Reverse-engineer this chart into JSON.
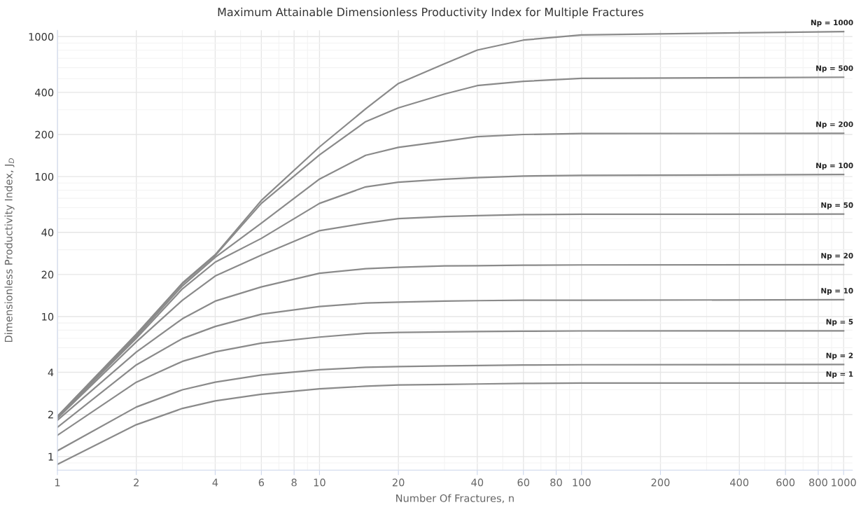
{
  "chart_data": {
    "type": "line",
    "title": "Maximum Attainable Dimensionless Productivity Index for Multiple Fractures",
    "xlabel": "Number Of Fractures, n",
    "ylabel": "Dimensionless Productivity Index, J$_{D}$",
    "log": "xy",
    "grid": true,
    "legend": false,
    "marker": "none",
    "line_style": "solid",
    "xlim": [
      1,
      1080
    ],
    "ylim": [
      0.8,
      1110
    ],
    "xticks": [
      1,
      2,
      4,
      6,
      8,
      10,
      20,
      40,
      60,
      80,
      100,
      200,
      400,
      600,
      800,
      1000
    ],
    "yticks": [
      1,
      2,
      4,
      10,
      20,
      40,
      100,
      200,
      400,
      1000
    ],
    "x": [
      1,
      2,
      3,
      4,
      6,
      10,
      15,
      20,
      30,
      40,
      60,
      100,
      1000
    ],
    "series": [
      {
        "name": "Np = 1000",
        "color": "#8a8a8a",
        "values": [
          1.94,
          7.5,
          17.4,
          27.7,
          67.6,
          163,
          305,
          463,
          641,
          802,
          945,
          1029,
          1087
        ]
      },
      {
        "name": "Np = 500",
        "color": "#8a8a8a",
        "values": [
          1.93,
          7.4,
          17.2,
          27.3,
          64.4,
          143,
          247,
          310,
          389,
          447,
          479,
          504,
          513
        ]
      },
      {
        "name": "Np = 200",
        "color": "#8a8a8a",
        "values": [
          1.92,
          7.2,
          16.6,
          26.5,
          46.5,
          96,
          142,
          162,
          179,
          193,
          200,
          203,
          204
        ]
      },
      {
        "name": "Np = 100",
        "color": "#8a8a8a",
        "values": [
          1.9,
          7.0,
          15.8,
          24.5,
          36.2,
          64.4,
          84.5,
          91.3,
          95.9,
          98.4,
          101,
          102,
          103.5
        ]
      },
      {
        "name": "Np = 50",
        "color": "#8a8a8a",
        "values": [
          1.88,
          6.6,
          13.1,
          19.5,
          27.5,
          41.1,
          46.5,
          50.1,
          51.9,
          52.7,
          53.5,
          53.8,
          54
        ]
      },
      {
        "name": "Np = 20",
        "color": "#8a8a8a",
        "values": [
          1.82,
          5.58,
          9.66,
          12.9,
          16.3,
          20.4,
          22,
          22.5,
          23,
          23.1,
          23.3,
          23.4,
          23.5
        ]
      },
      {
        "name": "Np = 10",
        "color": "#8a8a8a",
        "values": [
          1.62,
          4.52,
          6.97,
          8.5,
          10.4,
          11.8,
          12.5,
          12.7,
          12.9,
          13.0,
          13.1,
          13.1,
          13.2
        ]
      },
      {
        "name": "Np = 5",
        "color": "#8a8a8a",
        "values": [
          1.42,
          3.4,
          4.79,
          5.6,
          6.46,
          7.14,
          7.59,
          7.7,
          7.78,
          7.82,
          7.86,
          7.9,
          7.92
        ]
      },
      {
        "name": "Np = 2",
        "color": "#8a8a8a",
        "values": [
          1.1,
          2.26,
          3.0,
          3.4,
          3.83,
          4.17,
          4.34,
          4.4,
          4.45,
          4.47,
          4.51,
          4.53,
          4.55
        ]
      },
      {
        "name": "Np = 1",
        "color": "#8a8a8a",
        "values": [
          0.88,
          1.69,
          2.21,
          2.5,
          2.79,
          3.05,
          3.18,
          3.25,
          3.28,
          3.3,
          3.33,
          3.35,
          3.35
        ]
      }
    ]
  }
}
